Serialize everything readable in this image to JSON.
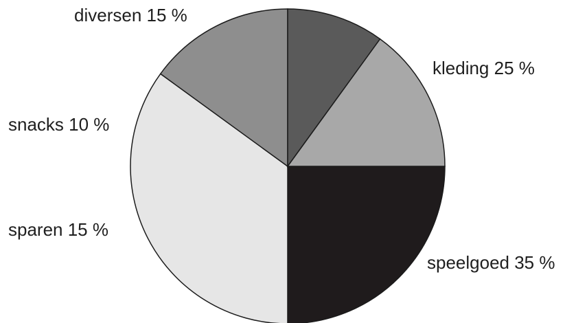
{
  "chart_data": {
    "type": "pie",
    "start_angle_deg": 0,
    "direction": "clockwise",
    "slices": [
      {
        "label": "kleding",
        "value": 25,
        "display": "kleding 25 %",
        "color": "#1f1b1c"
      },
      {
        "label": "speelgoed",
        "value": 35,
        "display": "speelgoed 35 %",
        "color": "#e6e6e6"
      },
      {
        "label": "sparen",
        "value": 15,
        "display": "sparen 15 %",
        "color": "#8e8e8e"
      },
      {
        "label": "snacks",
        "value": 10,
        "display": "snacks 10 %",
        "color": "#5a5a5a"
      },
      {
        "label": "diversen",
        "value": 15,
        "display": "diversen 15 %",
        "color": "#a8a8a8"
      }
    ]
  }
}
